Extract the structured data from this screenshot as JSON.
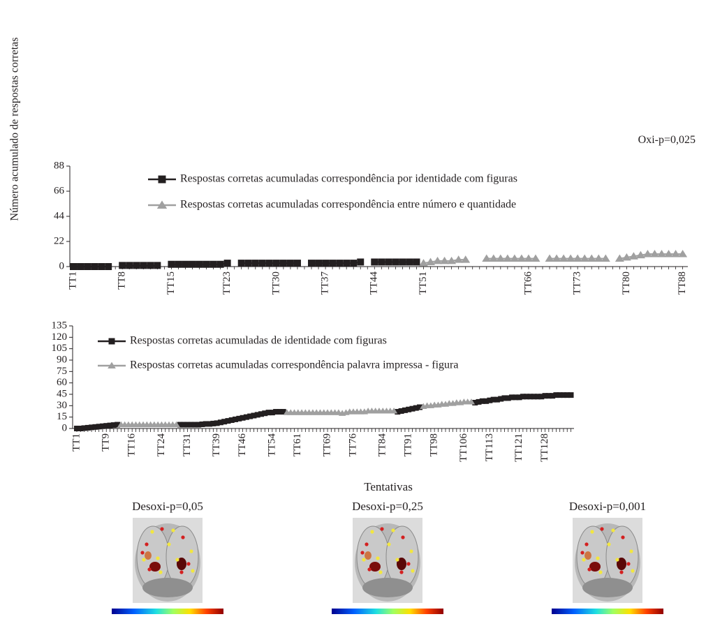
{
  "figure": {
    "y_axis_label": "Número acumulado de respostas corretas",
    "annotation": "Oxi-p=0,025",
    "x_axis_label": "Tentativas"
  },
  "chart_data": [
    {
      "type": "line",
      "legend": "upper-left",
      "categories": [
        "TT1",
        null,
        null,
        null,
        null,
        null,
        null,
        "TT8",
        null,
        null,
        null,
        null,
        null,
        null,
        "TT15",
        null,
        null,
        null,
        null,
        null,
        null,
        null,
        "TT23",
        null,
        null,
        null,
        null,
        null,
        null,
        "TT30",
        null,
        null,
        null,
        null,
        null,
        null,
        "TT37",
        null,
        null,
        null,
        null,
        null,
        null,
        "TT44",
        null,
        null,
        null,
        null,
        null,
        null,
        "TT51",
        null,
        null,
        null,
        null,
        null,
        null,
        null,
        null,
        null,
        null,
        null,
        null,
        null,
        null,
        "TT66",
        null,
        null,
        null,
        null,
        null,
        null,
        "TT73",
        null,
        null,
        null,
        null,
        null,
        null,
        "TT80",
        null,
        null,
        null,
        null,
        null,
        null,
        null,
        "TT88"
      ],
      "ylim": [
        0,
        88
      ],
      "yticks": [
        0,
        22,
        44,
        66,
        88
      ],
      "series": [
        {
          "name": "Respostas corretas acumuladas correspondência por identidade com figuras",
          "color": "#231f20",
          "marker": "square",
          "values": [
            0,
            0,
            0,
            0,
            0,
            0,
            null,
            1,
            1,
            1,
            1,
            1,
            1,
            null,
            2,
            2,
            2,
            2,
            2,
            2,
            2,
            2,
            3,
            null,
            3,
            3,
            3,
            3,
            3,
            3,
            3,
            3,
            3,
            null,
            3,
            3,
            3,
            3,
            3,
            3,
            3,
            4,
            null,
            4,
            4,
            4,
            4,
            4,
            4,
            4,
            null,
            null,
            null,
            null,
            null,
            null,
            null,
            null,
            null,
            null,
            null,
            null,
            null,
            null,
            null,
            null,
            null,
            null,
            null,
            null,
            null,
            null,
            null,
            null,
            null,
            null,
            null,
            null,
            null,
            null,
            null,
            null,
            null,
            null,
            null,
            null,
            null,
            null
          ]
        },
        {
          "name": "Respostas corretas acumuladas correspondência entre número e quantidade",
          "color": "#a0a0a0",
          "marker": "triangle",
          "values": [
            null,
            null,
            null,
            null,
            null,
            null,
            null,
            null,
            null,
            null,
            null,
            null,
            null,
            null,
            null,
            null,
            null,
            null,
            null,
            null,
            null,
            null,
            null,
            null,
            null,
            null,
            null,
            null,
            null,
            null,
            null,
            null,
            null,
            null,
            null,
            null,
            null,
            null,
            null,
            null,
            null,
            null,
            null,
            null,
            null,
            null,
            null,
            null,
            null,
            null,
            3,
            4,
            5,
            5,
            5,
            6,
            6,
            null,
            null,
            7,
            7,
            7,
            7,
            7,
            7,
            7,
            7,
            null,
            7,
            7,
            7,
            7,
            7,
            7,
            7,
            7,
            7,
            null,
            7,
            8,
            9,
            10,
            11,
            11,
            11,
            11,
            11,
            11
          ]
        }
      ]
    },
    {
      "type": "line",
      "legend": "upper-left",
      "categories": [
        "TT1",
        null,
        null,
        null,
        null,
        null,
        null,
        null,
        "TT9",
        null,
        null,
        null,
        null,
        null,
        null,
        "TT16",
        null,
        null,
        null,
        null,
        null,
        null,
        null,
        "TT24",
        null,
        null,
        null,
        null,
        null,
        null,
        "TT31",
        null,
        null,
        null,
        null,
        null,
        null,
        null,
        "TT39",
        null,
        null,
        null,
        null,
        null,
        null,
        "TT46",
        null,
        null,
        null,
        null,
        null,
        null,
        null,
        "TT54",
        null,
        null,
        null,
        null,
        null,
        null,
        "TT61",
        null,
        null,
        null,
        null,
        null,
        null,
        null,
        "TT69",
        null,
        null,
        null,
        null,
        null,
        null,
        "TT76",
        null,
        null,
        null,
        null,
        null,
        null,
        null,
        "TT84",
        null,
        null,
        null,
        null,
        null,
        null,
        "TT91",
        null,
        null,
        null,
        null,
        null,
        null,
        "TT98",
        null,
        null,
        null,
        null,
        null,
        null,
        null,
        "TT106",
        null,
        null,
        null,
        null,
        null,
        null,
        "TT113",
        null,
        null,
        null,
        null,
        null,
        null,
        null,
        "TT121",
        null,
        null,
        null,
        null,
        null,
        null,
        "TT128",
        null,
        null,
        null,
        null,
        null,
        null,
        null
      ],
      "ylim": [
        0,
        135
      ],
      "yticks": [
        0,
        15,
        30,
        45,
        60,
        75,
        90,
        105,
        120,
        135
      ],
      "series": [
        {
          "name": "Respostas corretas acumuladas de identidade com figuras",
          "color": "#231f20",
          "marker": "square",
          "values": [
            0,
            0,
            0.5,
            1,
            1.5,
            2,
            2.5,
            3,
            3.5,
            4,
            4.5,
            5,
            null,
            null,
            null,
            null,
            null,
            null,
            null,
            null,
            null,
            null,
            null,
            null,
            null,
            null,
            null,
            null,
            5,
            5,
            5,
            5,
            5,
            5,
            5.5,
            6,
            6,
            6.5,
            7,
            8,
            9,
            10,
            11,
            12,
            13,
            14,
            15,
            16,
            17,
            18,
            19,
            20,
            21,
            21,
            22,
            22,
            22,
            null,
            null,
            null,
            null,
            null,
            null,
            null,
            null,
            null,
            null,
            null,
            null,
            null,
            null,
            null,
            null,
            null,
            null,
            null,
            null,
            null,
            null,
            null,
            null,
            null,
            null,
            null,
            null,
            null,
            null,
            22,
            23,
            24,
            25,
            26,
            27,
            28,
            null,
            null,
            null,
            null,
            null,
            null,
            null,
            null,
            null,
            null,
            null,
            null,
            null,
            null,
            34,
            35,
            36,
            36,
            37,
            38,
            38,
            39,
            40,
            40,
            41,
            41,
            41,
            42,
            42,
            42,
            42,
            42,
            42,
            43,
            43,
            43,
            44,
            44,
            44,
            44,
            44
          ]
        },
        {
          "name": "Respostas corretas acumuladas correspondência palavra impressa - figura",
          "color": "#a0a0a0",
          "marker": "triangle",
          "values": [
            null,
            null,
            null,
            null,
            null,
            null,
            null,
            null,
            null,
            null,
            null,
            null,
            5,
            5,
            5,
            5,
            5,
            5,
            5,
            5,
            5,
            5,
            5,
            5,
            5,
            5,
            5,
            5,
            null,
            null,
            null,
            null,
            null,
            null,
            null,
            null,
            null,
            null,
            null,
            null,
            null,
            null,
            null,
            null,
            null,
            null,
            null,
            null,
            null,
            null,
            null,
            null,
            null,
            null,
            null,
            null,
            null,
            21,
            21,
            21,
            21,
            21,
            21,
            21,
            21,
            21,
            21,
            21,
            21,
            21,
            21,
            21,
            20,
            21,
            22,
            22,
            22,
            22,
            22,
            23,
            23,
            23,
            23,
            23,
            23,
            23,
            23,
            null,
            null,
            null,
            null,
            null,
            null,
            null,
            29,
            30,
            30,
            31,
            31,
            32,
            32,
            33,
            33,
            34,
            34,
            35,
            35,
            35,
            null,
            null,
            null,
            null,
            null,
            null,
            null,
            null,
            null,
            null,
            null,
            null,
            null,
            null,
            null,
            null,
            null,
            null,
            null,
            null,
            null,
            null,
            null,
            null,
            null,
            null,
            null
          ]
        }
      ]
    }
  ],
  "images": [
    {
      "title": "Desoxi-p=0,05"
    },
    {
      "title": "Desoxi-p=0,25"
    },
    {
      "title": "Desoxi-p=0,001"
    }
  ]
}
